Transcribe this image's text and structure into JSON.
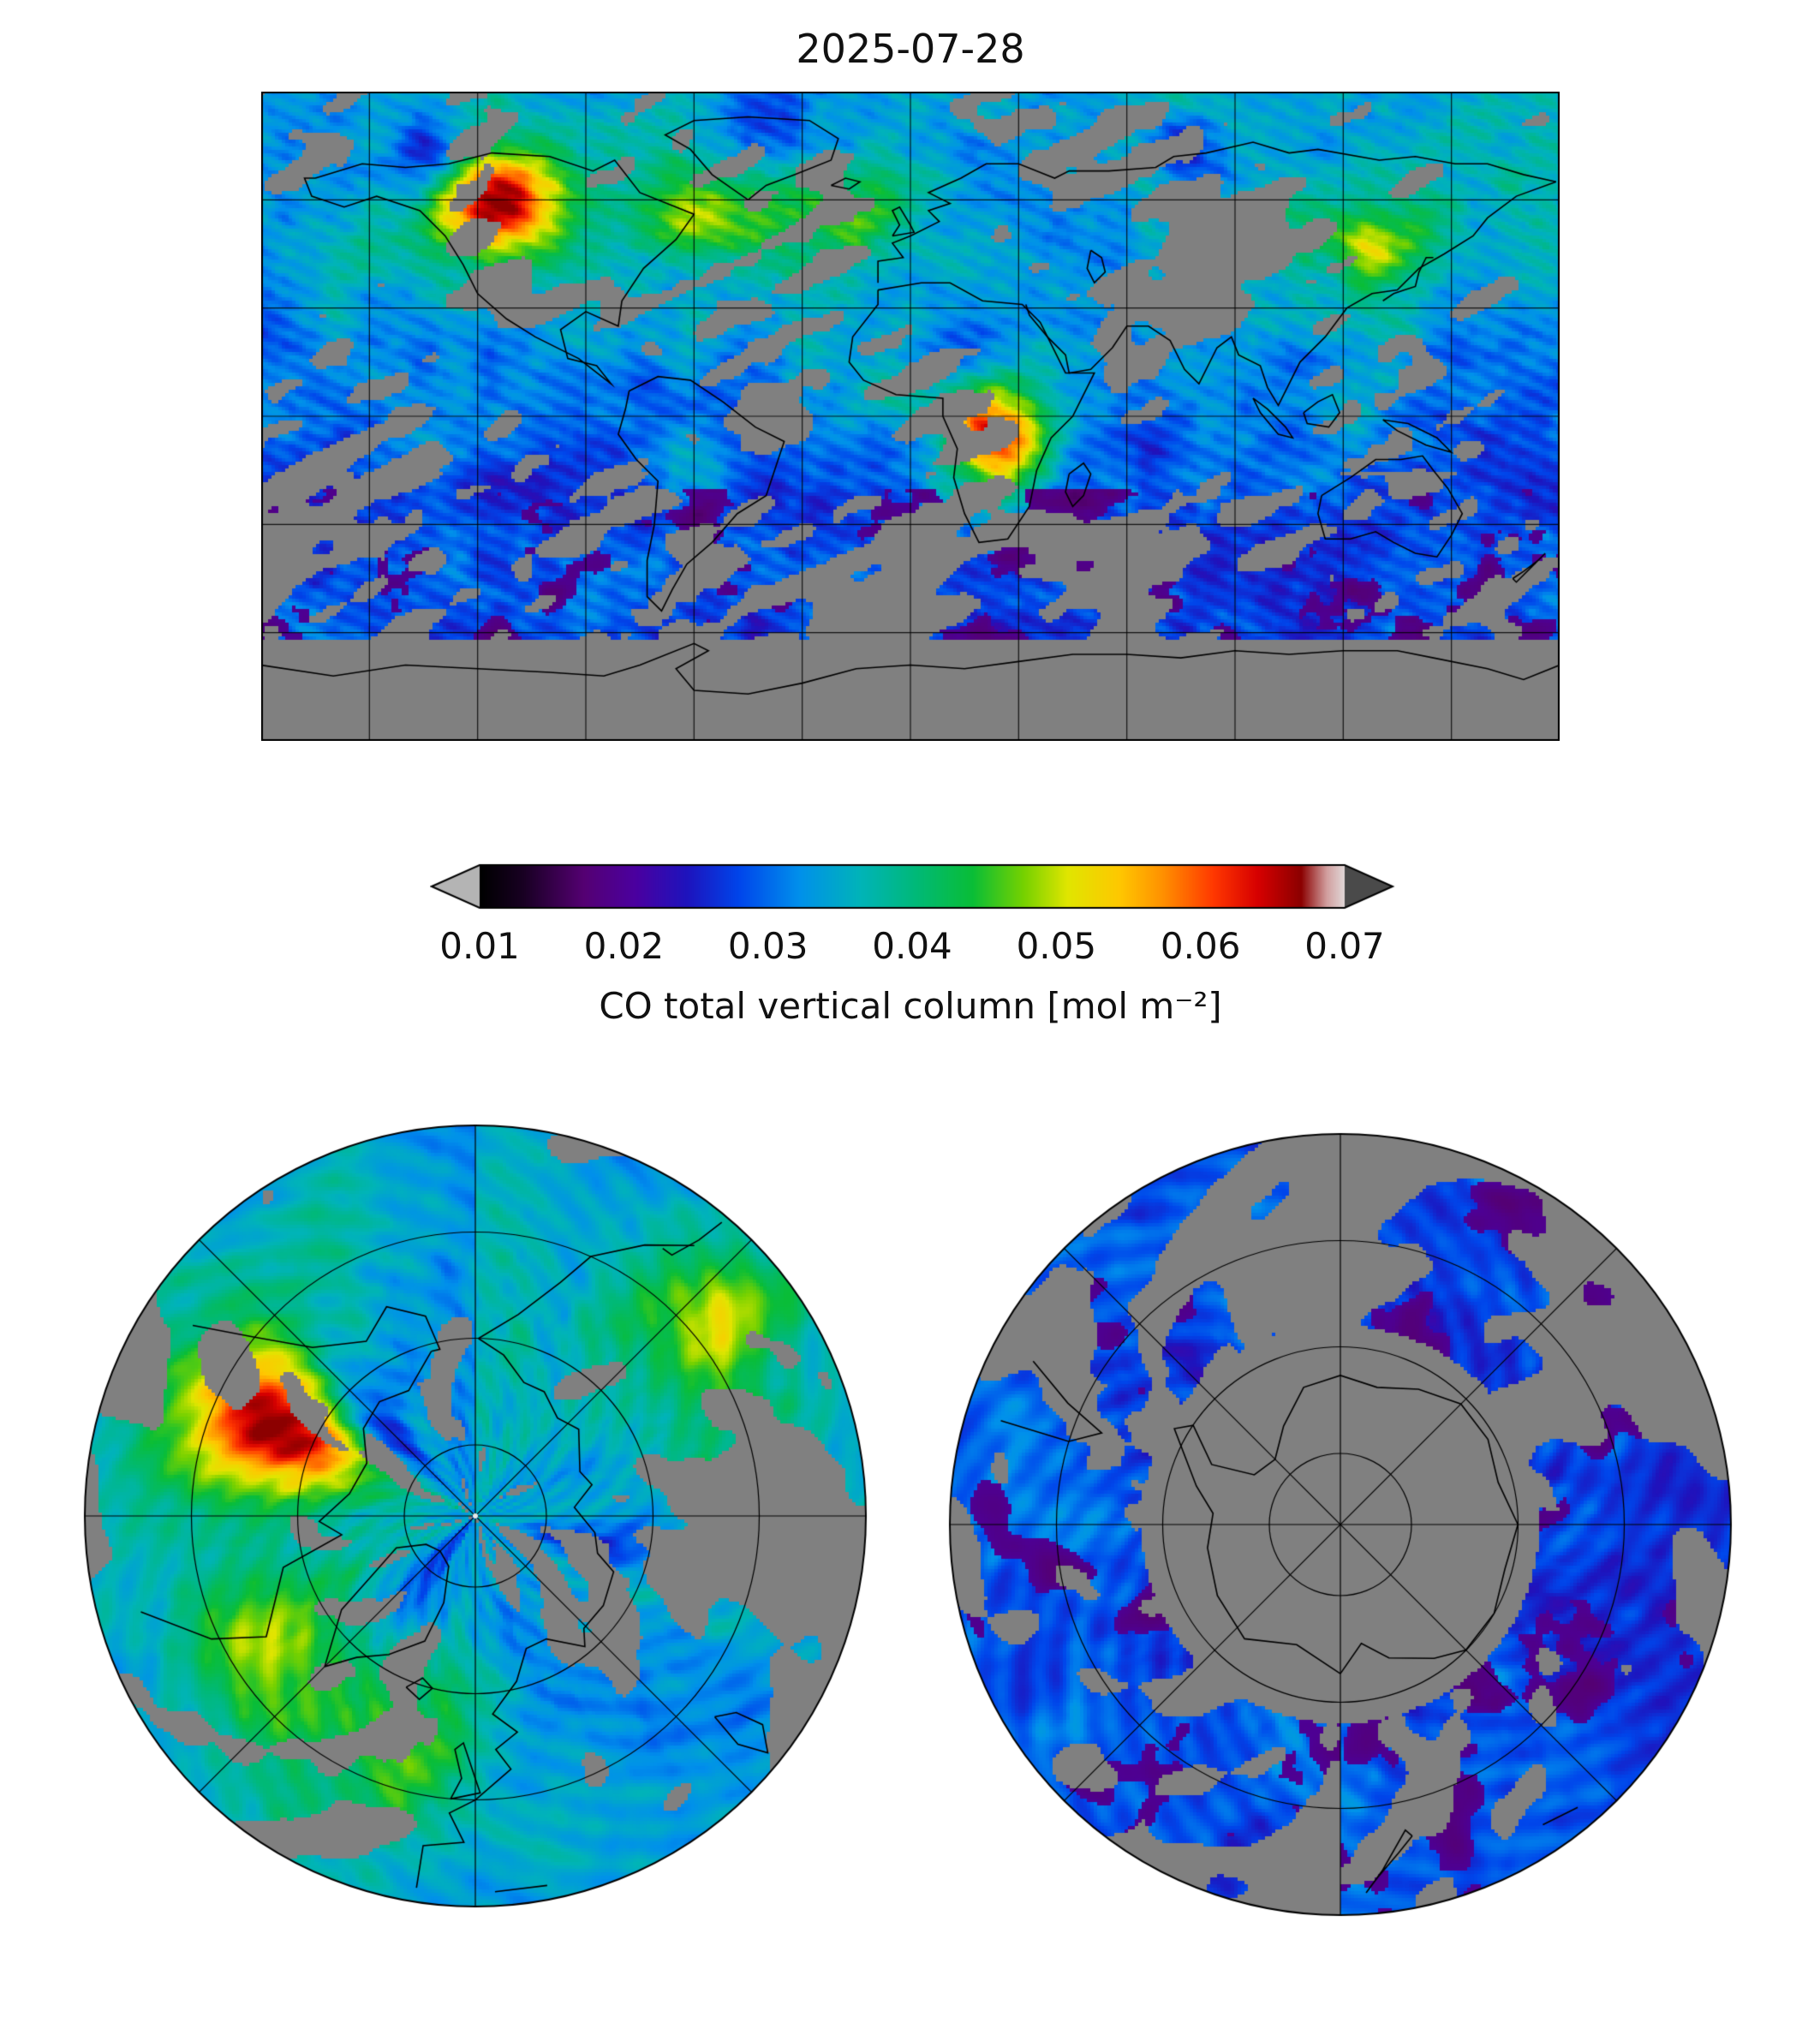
{
  "figure": {
    "title": "2025-07-28"
  },
  "colorbar": {
    "tick_labels": [
      "0.01",
      "0.02",
      "0.03",
      "0.04",
      "0.05",
      "0.06",
      "0.07"
    ],
    "label": "CO total vertical column [mol m⁻²]",
    "no_data_color": "#808080"
  },
  "chart_data": {
    "type": "heatmap",
    "title": "2025-07-28",
    "colorbar": {
      "label": "CO total vertical column [mol m⁻²]",
      "units": "mol m⁻²",
      "ticks": [
        0.01,
        0.02,
        0.03,
        0.04,
        0.05,
        0.06,
        0.07
      ],
      "range": [
        0.01,
        0.07
      ],
      "extend": "both",
      "orientation": "horizontal",
      "colormap": "black-purple-darkblue-blue-cyan-teal-green-yellow-orange-red-darkred-lightgray",
      "under_arrow_color": "#b4b4b4",
      "over_arrow_color": "#4a4a4a",
      "no_data_color": "#808080"
    },
    "panels": [
      {
        "projection": "equirectangular",
        "extent_lon": [
          -180,
          180
        ],
        "extent_lat": [
          -90,
          90
        ],
        "gridline_spacing_deg": 30,
        "coastlines": true
      },
      {
        "projection": "north_polar_stereographic",
        "gridlines": "circles at 80N/65N/50N, meridians every 45 deg",
        "coastlines": true
      },
      {
        "projection": "south_polar_stereographic",
        "gridlines": "circles at 80S/65S/50S, meridians every 45 deg",
        "coastlines": true
      }
    ],
    "features": [
      {
        "region": "Central Africa (Congo Basin)",
        "value_mol_m2": 0.055,
        "note": "strongest CO plume, yellow-red core"
      },
      {
        "region": "Western Canada boreal fires",
        "value_mol_m2": 0.055,
        "note": "red/yellow hotspot, also visible in north polar panel"
      },
      {
        "region": "North Atlantic / Labrador smoke plume",
        "value_mol_m2": 0.045,
        "note": "green-yellow streak toward Europe"
      },
      {
        "region": "Northeast Asia / Amur region",
        "value_mol_m2": 0.04,
        "note": "green patch"
      },
      {
        "region": "Northern hemisphere background",
        "value_mol_m2": 0.03,
        "note": "cyan-green"
      },
      {
        "region": "Southern hemisphere oceans",
        "value_mol_m2": 0.02,
        "note": "blue"
      },
      {
        "region": "Southern Ocean patches",
        "value_mol_m2": 0.015,
        "note": "purple streaks near lower bound"
      },
      {
        "region": "Antarctica and high southern latitudes",
        "value_mol_m2": null,
        "note": "no data (gray), gray continent in south polar panel"
      }
    ]
  }
}
